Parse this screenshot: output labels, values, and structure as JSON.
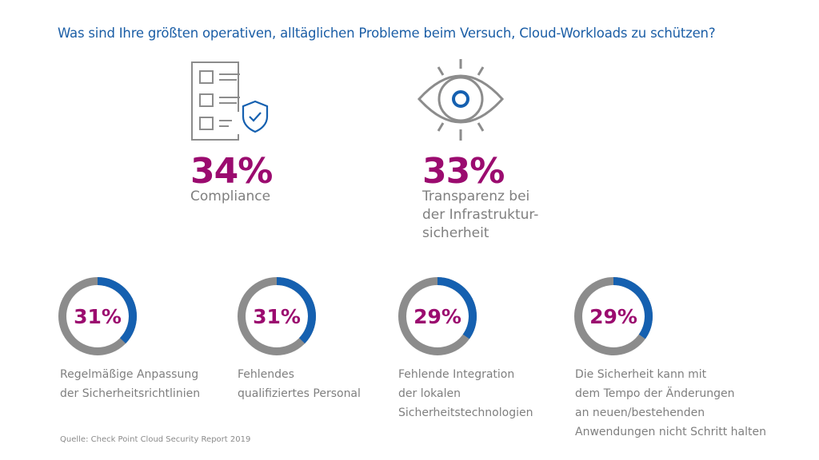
{
  "title": "Was sind Ihre größten operativen, alltäglichen Probleme beim Versuch, Cloud-Workloads zu schützen?",
  "colors": {
    "title": "#1b5ea6",
    "percent": "#9b0b6f",
    "arc": "#1560b0",
    "track": "#8c8c8c",
    "icon": "#8c8c8c"
  },
  "highlights": [
    {
      "value": "34%",
      "label": [
        "Compliance"
      ],
      "icon": "checklist-shield-icon"
    },
    {
      "value": "33%",
      "label": [
        "Transparenz bei",
        "der Infrastruktur-",
        "sicherheit"
      ],
      "icon": "eye-icon"
    }
  ],
  "chart_data": {
    "type": "donut",
    "items": [
      {
        "value": 31,
        "display": "31%",
        "label": [
          "Regelmäßige Anpassung",
          "der Sicherheitsrichtlinien"
        ]
      },
      {
        "value": 31,
        "display": "31%",
        "label": [
          "Fehlendes",
          "qualifiziertes Personal"
        ]
      },
      {
        "value": 29,
        "display": "29%",
        "label": [
          "Fehlende Integration",
          "der lokalen",
          "Sicherheitstechnologien"
        ]
      },
      {
        "value": 29,
        "display": "29%",
        "label": [
          "Die Sicherheit kann mit",
          "dem Tempo der Änderungen",
          "an neuen/bestehenden",
          "Anwendungen nicht Schritt halten"
        ]
      }
    ]
  },
  "source": "Quelle: Check Point Cloud Security Report 2019"
}
